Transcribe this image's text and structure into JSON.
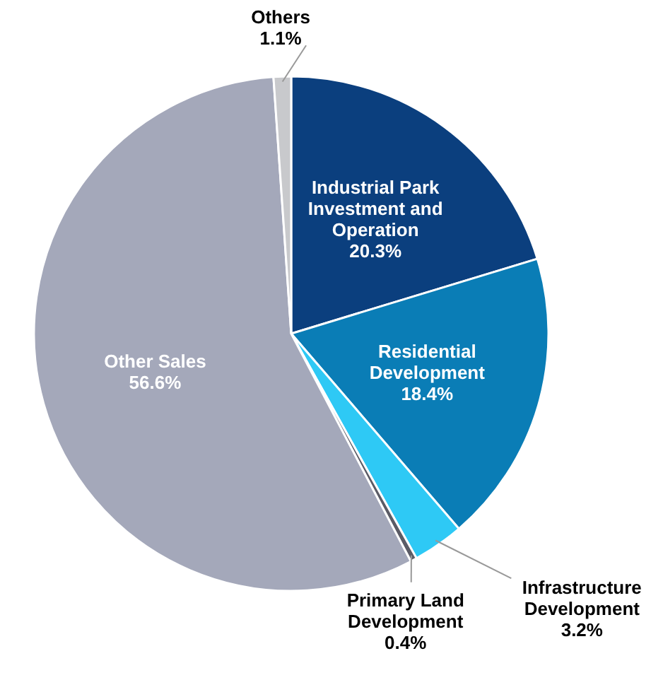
{
  "chart_data": {
    "type": "pie",
    "categories": [
      "Industrial Park Investment and Operation",
      "Residential Development",
      "Infrastructure Development",
      "Primary Land Development",
      "Other Sales",
      "Others"
    ],
    "values": [
      20.3,
      18.4,
      3.2,
      0.4,
      56.6,
      1.1
    ],
    "value_labels": [
      "20.3%",
      "18.4%",
      "3.2%",
      "0.4%",
      "56.6%",
      "1.1%"
    ],
    "colors": [
      "#0b3f7e",
      "#0a7db6",
      "#2ec9f5",
      "#5b5c66",
      "#a4a8ba",
      "#c8c9cc"
    ]
  }
}
